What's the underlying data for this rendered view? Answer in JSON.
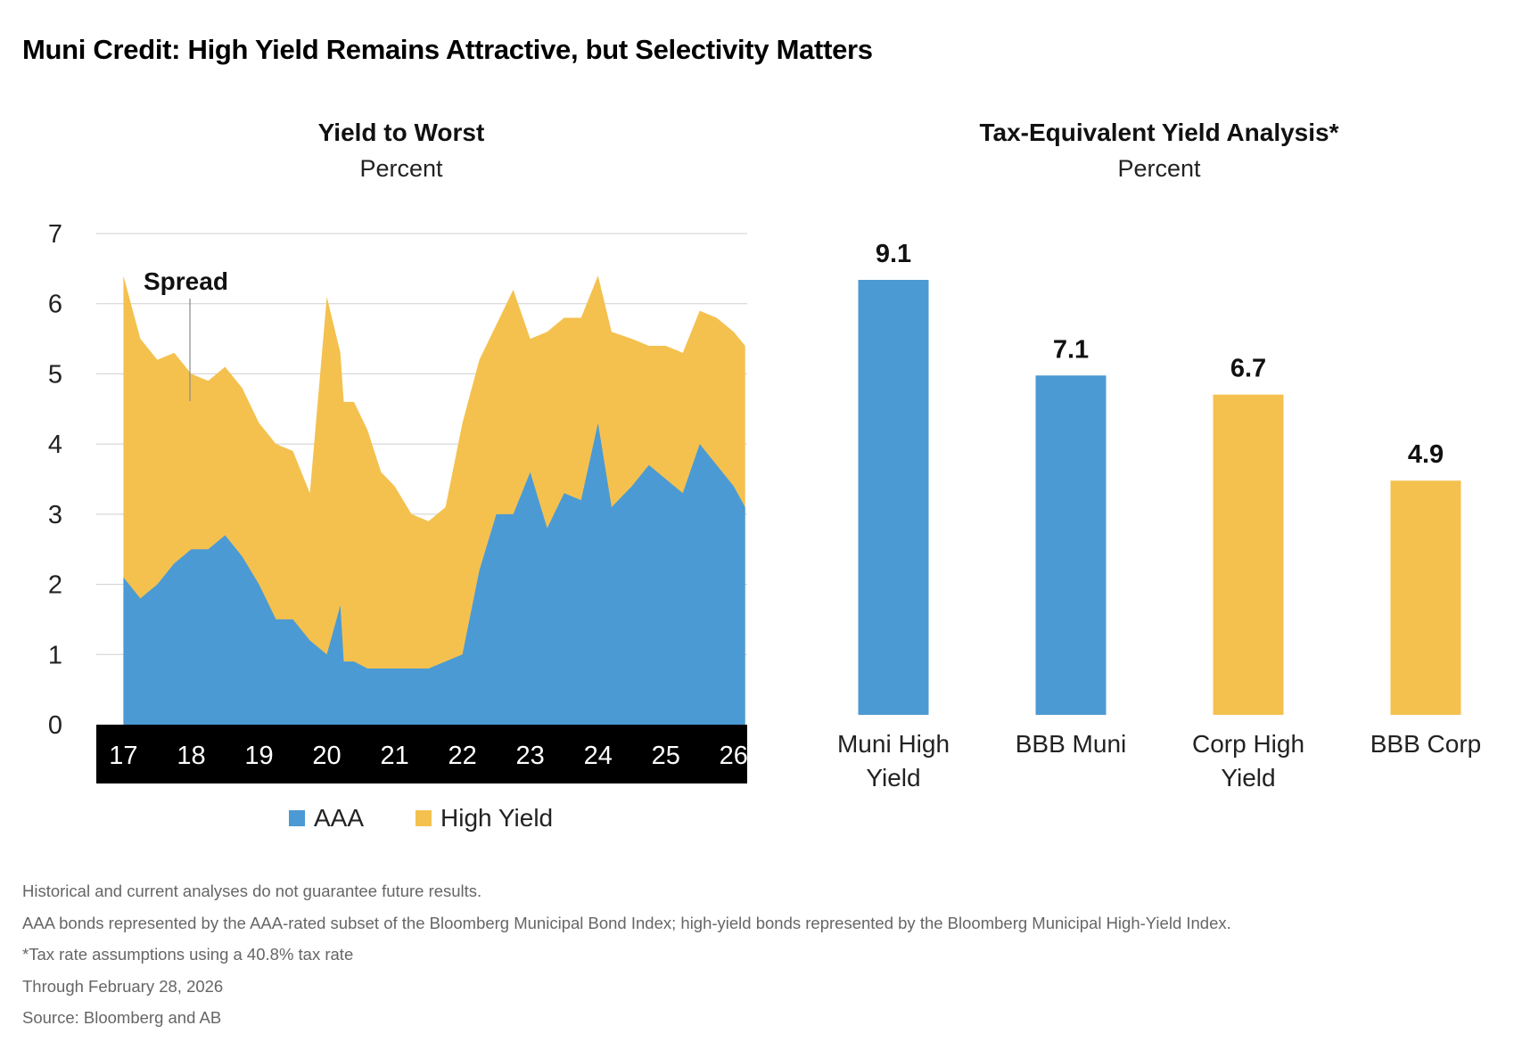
{
  "title": "Muni Credit: High Yield Remains Attractive, but Selectivity Matters",
  "colors": {
    "aaa": "#4b9ad4",
    "high_yield": "#f4c14f",
    "axis_band": "#000000",
    "grid": "#cfcfcf"
  },
  "left_chart": {
    "title": "Yield to Worst",
    "subtitle": "Percent",
    "annotation": "Spread",
    "legend": [
      "AAA",
      "High Yield"
    ]
  },
  "right_chart": {
    "title": "Tax-Equivalent Yield Analysis*",
    "subtitle": "Percent"
  },
  "chart_data": [
    {
      "type": "area",
      "title": "Yield to Worst",
      "ylabel": "Percent",
      "ylim": [
        0,
        7
      ],
      "yticks": [
        0,
        1,
        2,
        3,
        4,
        5,
        6,
        7
      ],
      "xticks": [
        "17",
        "18",
        "19",
        "20",
        "21",
        "22",
        "23",
        "24",
        "25",
        "26"
      ],
      "x": [
        2017.0,
        2017.25,
        2017.5,
        2017.75,
        2018.0,
        2018.25,
        2018.5,
        2018.75,
        2019.0,
        2019.25,
        2019.5,
        2019.75,
        2020.0,
        2020.2,
        2020.25,
        2020.4,
        2020.6,
        2020.8,
        2021.0,
        2021.25,
        2021.5,
        2021.75,
        2022.0,
        2022.25,
        2022.5,
        2022.75,
        2023.0,
        2023.25,
        2023.5,
        2023.75,
        2024.0,
        2024.2,
        2024.5,
        2024.75,
        2025.0,
        2025.25,
        2025.5,
        2025.75,
        2026.0,
        2026.17
      ],
      "series": [
        {
          "name": "AAA",
          "values": [
            2.1,
            1.8,
            2.0,
            2.3,
            2.5,
            2.5,
            2.7,
            2.4,
            2.0,
            1.5,
            1.5,
            1.2,
            1.0,
            1.7,
            0.9,
            0.9,
            0.8,
            0.8,
            0.8,
            0.8,
            0.8,
            0.9,
            1.0,
            2.2,
            3.0,
            3.0,
            3.6,
            2.8,
            3.3,
            3.2,
            4.3,
            3.1,
            3.4,
            3.7,
            3.5,
            3.3,
            4.0,
            3.7,
            3.4,
            3.1
          ]
        },
        {
          "name": "High Yield",
          "values": [
            6.4,
            5.5,
            5.2,
            5.3,
            5.0,
            4.9,
            5.1,
            4.8,
            4.3,
            4.0,
            3.9,
            3.3,
            6.1,
            5.3,
            4.6,
            4.6,
            4.2,
            3.6,
            3.4,
            3.0,
            2.9,
            3.1,
            4.3,
            5.2,
            5.7,
            6.2,
            5.5,
            5.6,
            5.8,
            5.8,
            6.4,
            5.6,
            5.5,
            5.4,
            5.4,
            5.3,
            5.9,
            5.8,
            5.6,
            5.4
          ]
        }
      ]
    },
    {
      "type": "bar",
      "title": "Tax-Equivalent Yield Analysis*",
      "ylabel": "Percent",
      "categories": [
        "Muni High Yield",
        "BBB Muni",
        "Corp High Yield",
        "BBB Corp"
      ],
      "category_lines": [
        [
          "Muni High",
          "Yield"
        ],
        [
          "BBB Muni"
        ],
        [
          "Corp High",
          "Yield"
        ],
        [
          "BBB Corp"
        ]
      ],
      "values": [
        9.1,
        7.1,
        6.7,
        4.9
      ],
      "value_labels": [
        "9.1",
        "7.1",
        "6.7",
        "4.9"
      ],
      "bar_colors": [
        "#4b9ad4",
        "#4b9ad4",
        "#f4c14f",
        "#f4c14f"
      ]
    }
  ],
  "footnotes": [
    "Historical and current analyses do not guarantee future results.",
    "AAA bonds represented by the AAA-rated subset of the Bloomberg Municipal Bond Index; high-yield bonds represented by the Bloomberg Municipal High-Yield Index.",
    "*Tax rate assumptions using a 40.8% tax rate",
    "Through February 28, 2026",
    "Source: Bloomberg and AB"
  ]
}
